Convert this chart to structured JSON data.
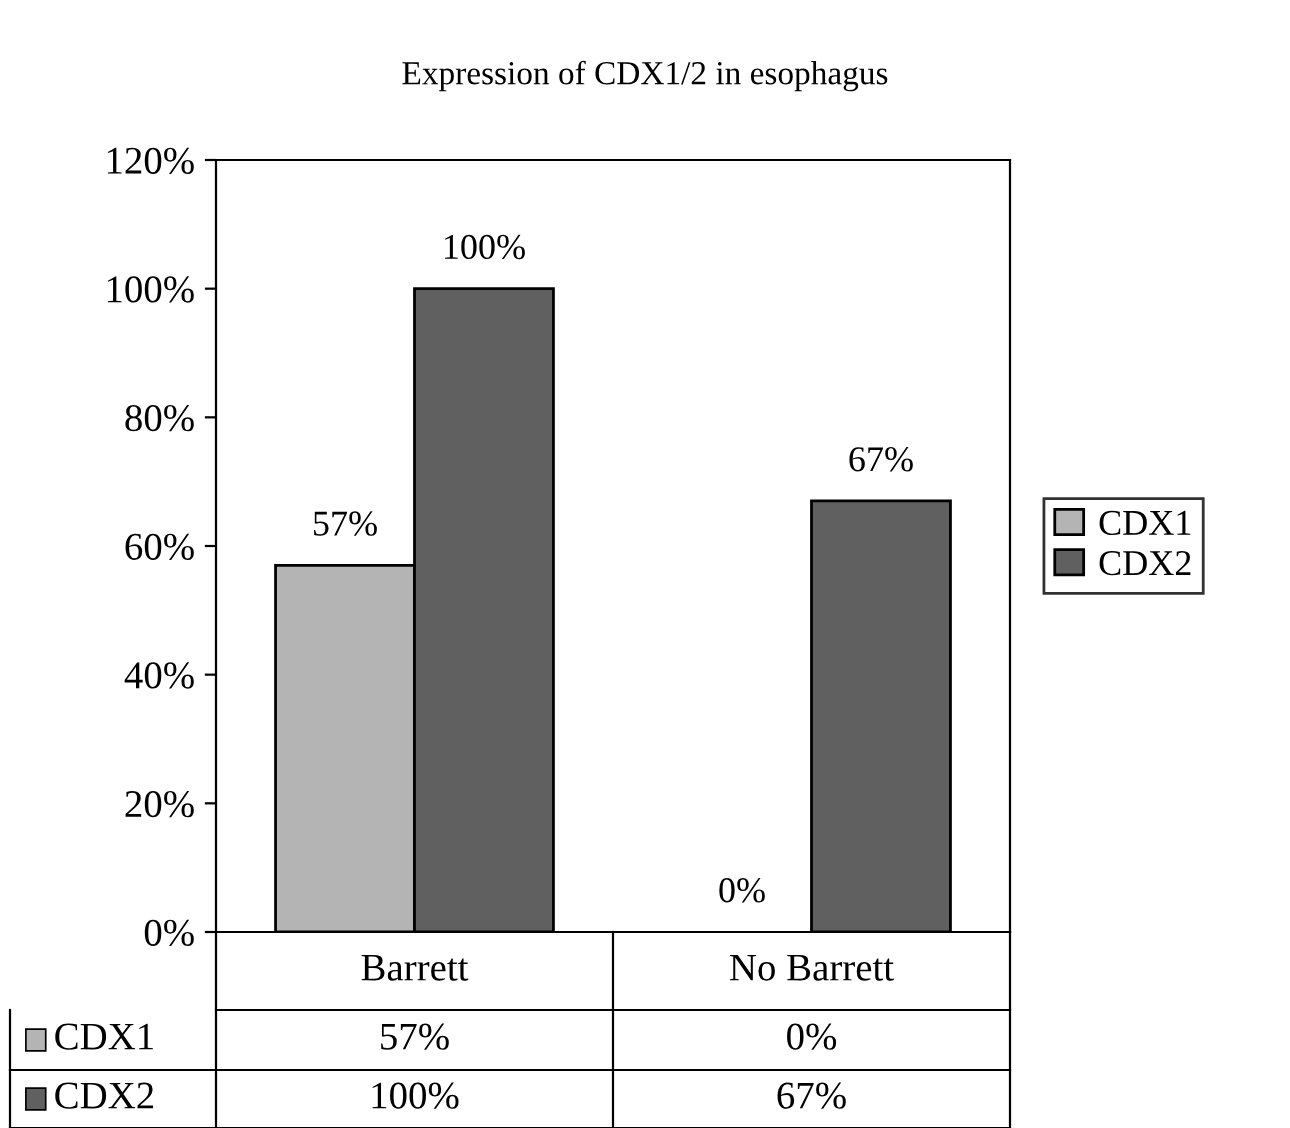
{
  "chart_data": {
    "type": "bar",
    "title": "Expression of CDX1/2 in esophagus",
    "categories": [
      "Barrett",
      "No Barrett"
    ],
    "series": [
      {
        "name": "CDX1",
        "color": "#b4b4b4",
        "values": [
          57,
          0
        ],
        "value_labels": [
          "57%",
          "0%"
        ]
      },
      {
        "name": "CDX2",
        "color": "#606060",
        "values": [
          100,
          67
        ],
        "value_labels": [
          "100%",
          "67%"
        ]
      }
    ],
    "ylim": [
      0,
      120
    ],
    "yticks": [
      {
        "value": 0,
        "label": "0%"
      },
      {
        "value": 20,
        "label": "20%"
      },
      {
        "value": 40,
        "label": "40%"
      },
      {
        "value": 60,
        "label": "60%"
      },
      {
        "value": 80,
        "label": "80%"
      },
      {
        "value": 100,
        "label": "100%"
      },
      {
        "value": 120,
        "label": "120%"
      }
    ],
    "grid": false,
    "legend": "right"
  }
}
